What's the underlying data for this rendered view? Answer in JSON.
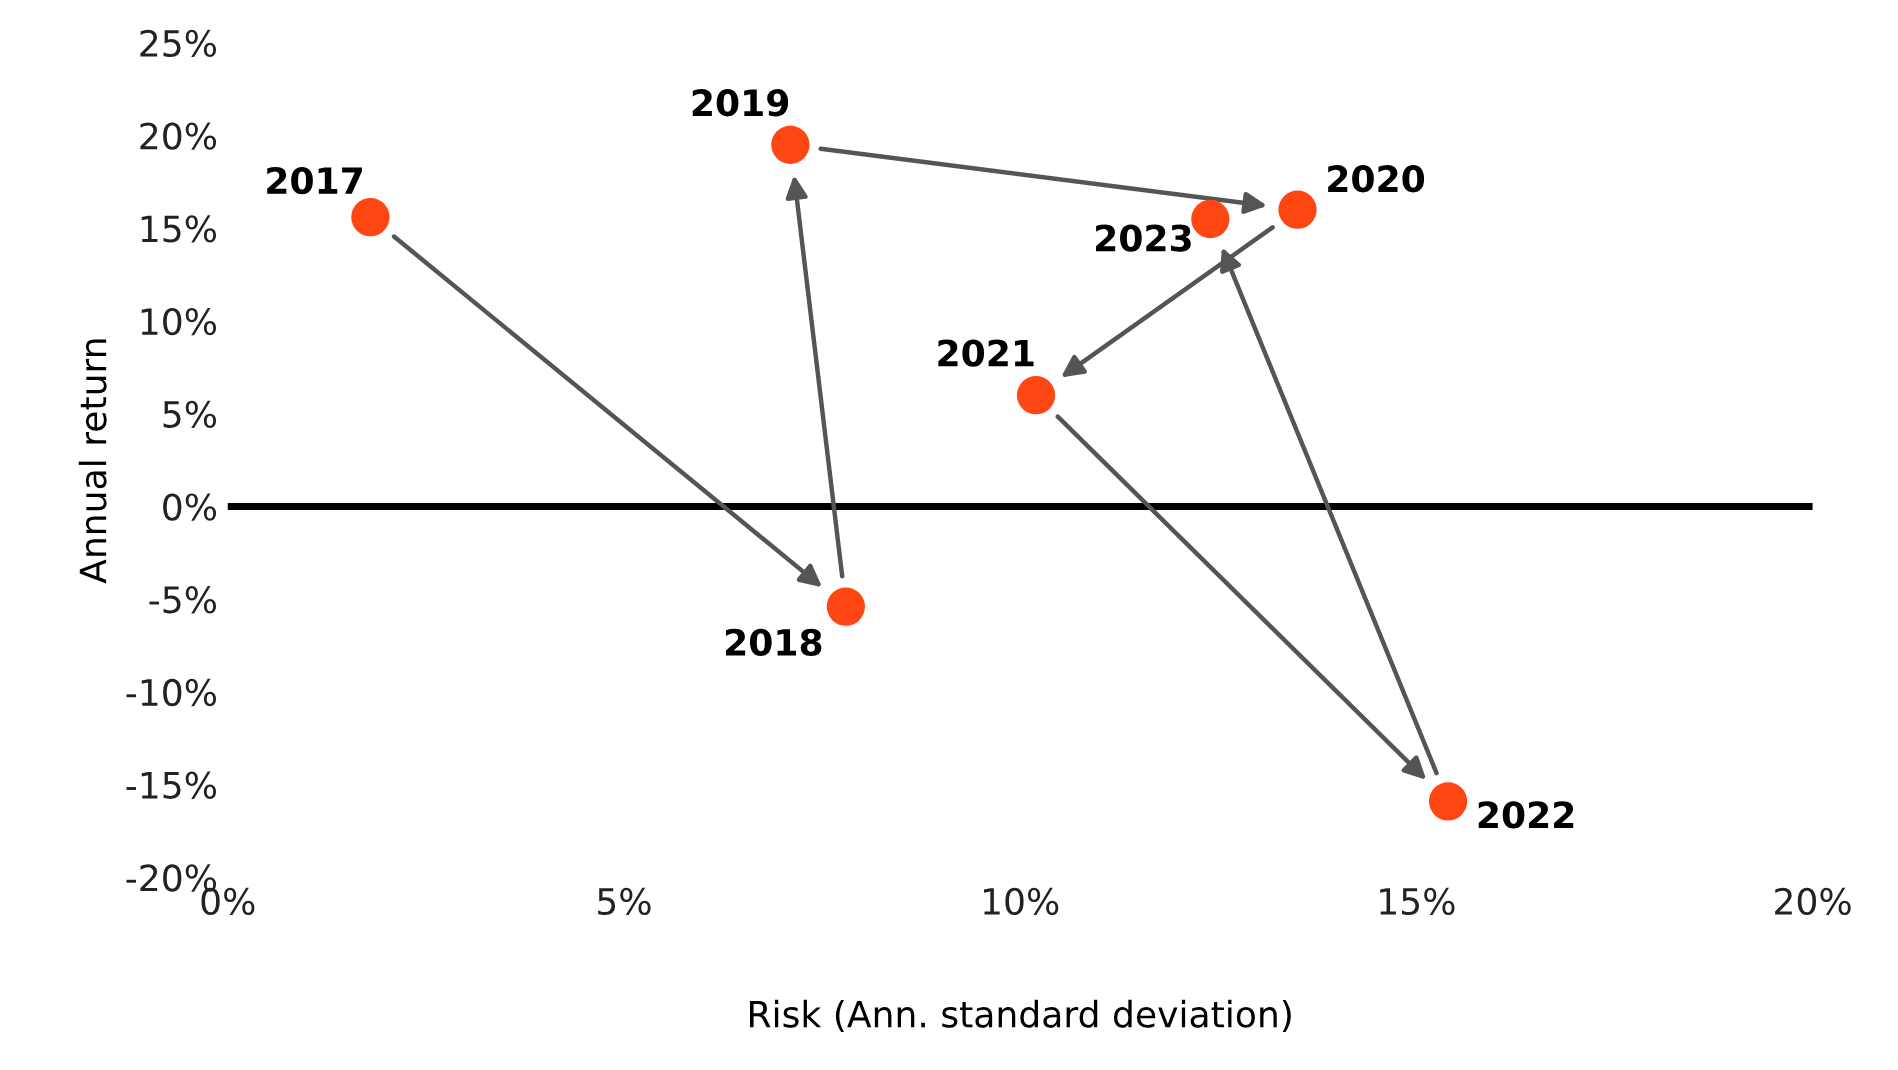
{
  "chart_data": {
    "type": "scatter",
    "xlabel": "Risk (Ann. standard deviation)",
    "ylabel": "Annual return",
    "x": [
      1.8,
      7.8,
      7.1,
      13.5,
      10.2,
      15.4,
      12.4
    ],
    "series": [
      {
        "color": "#ff4713",
        "values": [
          15.6,
          -5.4,
          19.5,
          16.0,
          6.0,
          -15.9,
          15.5
        ]
      }
    ],
    "marker": "circle",
    "annotations": [
      {
        "text": "2017",
        "x": 1.8,
        "y": 15.6
      },
      {
        "text": "2018",
        "x": 7.8,
        "y": -5.4
      },
      {
        "text": "2019",
        "x": 7.1,
        "y": 19.5
      },
      {
        "text": "2020",
        "x": 13.5,
        "y": 16.0
      },
      {
        "text": "2021",
        "x": 10.2,
        "y": 6.0
      },
      {
        "text": "2022",
        "x": 15.4,
        "y": -15.9
      },
      {
        "text": "2023",
        "x": 12.4,
        "y": 15.5
      }
    ],
    "xlim": [
      0,
      20
    ],
    "ylim": [
      -20,
      25
    ],
    "xticks": [
      {
        "value": 0,
        "label": "0%"
      },
      {
        "value": 5,
        "label": "5%"
      },
      {
        "value": 10,
        "label": "10%"
      },
      {
        "value": 15,
        "label": "15%"
      },
      {
        "value": 20,
        "label": "20%"
      }
    ],
    "yticks": [
      {
        "value": -20,
        "label": "-20%"
      },
      {
        "value": -15,
        "label": "-15%"
      },
      {
        "value": -10,
        "label": "-10%"
      },
      {
        "value": -5,
        "label": "-5%"
      },
      {
        "value": 0,
        "label": "0%"
      },
      {
        "value": 5,
        "label": "5%"
      },
      {
        "value": 10,
        "label": "10%"
      },
      {
        "value": 15,
        "label": "15%"
      },
      {
        "value": 20,
        "label": "20%"
      },
      {
        "value": 25,
        "label": "25%"
      }
    ],
    "ref_lines": [
      {
        "axis": "y",
        "value": 0,
        "color": "#000000"
      }
    ],
    "grid": false,
    "legend": false
  }
}
